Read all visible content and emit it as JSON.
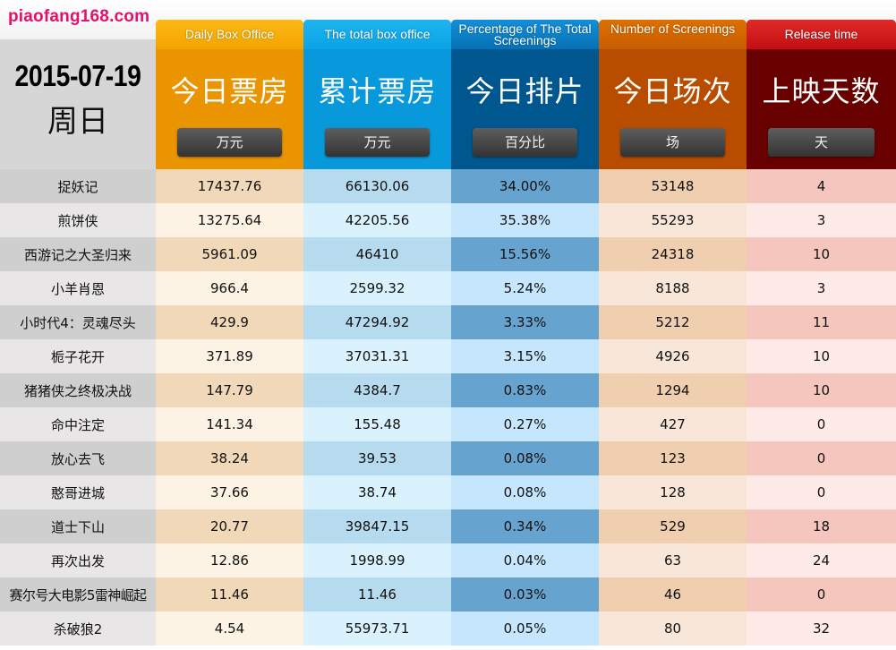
{
  "site": {
    "logo": "piaofang168.com"
  },
  "date": {
    "value": "2015-07-19",
    "weekday": "周日"
  },
  "headers": [
    {
      "en": "Daily Box Office",
      "cn": "今日票房",
      "unit": "万元",
      "color": "#e99400"
    },
    {
      "en": "The total box office",
      "cn": "累计票房",
      "unit": "万元",
      "color": "#0799dc"
    },
    {
      "en": "Percentage of The Total Screenings",
      "cn": "今日排片",
      "unit": "百分比",
      "color": "#00568e"
    },
    {
      "en": "Number of Screenings",
      "cn": "今日场次",
      "unit": "场",
      "color": "#b84d00"
    },
    {
      "en": "Release time",
      "cn": "上映天数",
      "unit": "天",
      "color": "#690000"
    }
  ],
  "rows": [
    {
      "name": "捉妖记",
      "daily": "17437.76",
      "total": "66130.06",
      "pct": "34.00%",
      "screenings": "53148",
      "days": "4"
    },
    {
      "name": "煎饼侠",
      "daily": "13275.64",
      "total": "42205.56",
      "pct": "35.38%",
      "screenings": "55293",
      "days": "3"
    },
    {
      "name": "西游记之大圣归来",
      "daily": "5961.09",
      "total": "46410",
      "pct": "15.56%",
      "screenings": "24318",
      "days": "10"
    },
    {
      "name": "小羊肖恩",
      "daily": "966.4",
      "total": "2599.32",
      "pct": "5.24%",
      "screenings": "8188",
      "days": "3"
    },
    {
      "name": "小时代4：灵魂尽头",
      "daily": "429.9",
      "total": "47294.92",
      "pct": "3.33%",
      "screenings": "5212",
      "days": "11"
    },
    {
      "name": "栀子花开",
      "daily": "371.89",
      "total": "37031.31",
      "pct": "3.15%",
      "screenings": "4926",
      "days": "10"
    },
    {
      "name": "猪猪侠之终极决战",
      "daily": "147.79",
      "total": "4384.7",
      "pct": "0.83%",
      "screenings": "1294",
      "days": "10"
    },
    {
      "name": "命中注定",
      "daily": "141.34",
      "total": "155.48",
      "pct": "0.27%",
      "screenings": "427",
      "days": "0"
    },
    {
      "name": "放心去飞",
      "daily": "38.24",
      "total": "39.53",
      "pct": "0.08%",
      "screenings": "123",
      "days": "0"
    },
    {
      "name": "憨哥进城",
      "daily": "37.66",
      "total": "38.74",
      "pct": "0.08%",
      "screenings": "128",
      "days": "0"
    },
    {
      "name": "道士下山",
      "daily": "20.77",
      "total": "39847.15",
      "pct": "0.34%",
      "screenings": "529",
      "days": "18"
    },
    {
      "name": "再次出发",
      "daily": "12.86",
      "total": "1998.99",
      "pct": "0.04%",
      "screenings": "63",
      "days": "24"
    },
    {
      "name": "赛尔号大电影5雷神崛起",
      "daily": "11.46",
      "total": "11.46",
      "pct": "0.03%",
      "screenings": "46",
      "days": "0"
    },
    {
      "name": "杀破狼2",
      "daily": "4.54",
      "total": "55973.71",
      "pct": "0.05%",
      "screenings": "80",
      "days": "32"
    }
  ]
}
